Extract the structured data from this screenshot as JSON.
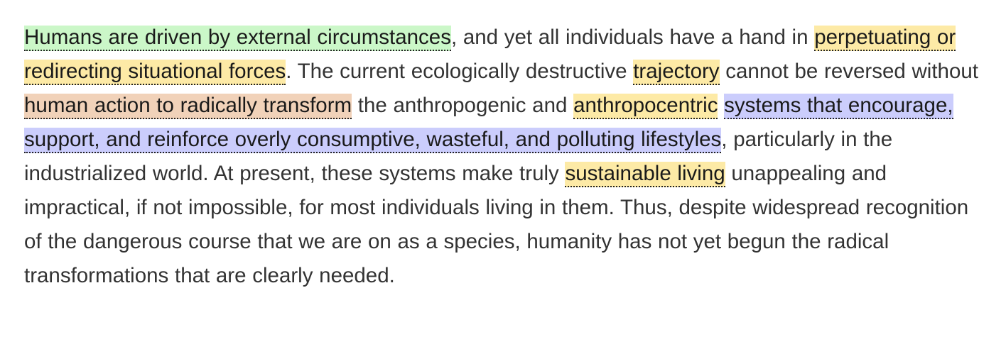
{
  "colors": {
    "green": "#cbf7c8",
    "yellow": "#fdeaa6",
    "orange": "#f1d2b9",
    "purple": "#cbcdfc",
    "text": "#333333"
  },
  "segments": [
    {
      "text": "Humans are driven by external circumstances",
      "highlight": "green"
    },
    {
      "text": ", and yet all individuals have a hand in "
    },
    {
      "text": "perpetuating or redirecting situational forces",
      "highlight": "yellow"
    },
    {
      "text": ". The current ecologically destructive "
    },
    {
      "text": "trajectory",
      "highlight": "yellow"
    },
    {
      "text": " cannot be reversed without "
    },
    {
      "text": "human action to radically transform",
      "highlight": "orange"
    },
    {
      "text": " the anthropogenic and "
    },
    {
      "text": "anthropocentric",
      "highlight": "yellow"
    },
    {
      "text": " "
    },
    {
      "text": "systems that encourage, support, and reinforce overly consumptive, wasteful, and polluting lifestyles",
      "highlight": "purple"
    },
    {
      "text": ", particularly in the industrialized world. At present, these systems make truly "
    },
    {
      "text": "sustainable living",
      "highlight": "yellow"
    },
    {
      "text": " unappealing and impractical, if not impossible, for most individuals living in them. Thus, despite widespread recognition of the dangerous course that we are on as a species, humanity has not yet begun the radical transformations that are clearly needed."
    }
  ]
}
